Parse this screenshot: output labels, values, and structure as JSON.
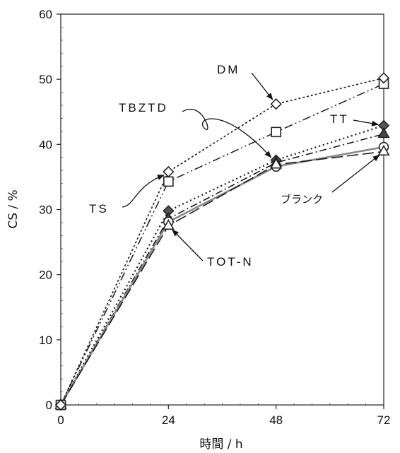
{
  "chart_data": {
    "type": "line",
    "title": "",
    "xlabel": "時間 / h",
    "ylabel": "CS / %",
    "x": [
      0,
      24,
      48,
      72
    ],
    "xlim": [
      0,
      72
    ],
    "ylim": [
      0,
      60
    ],
    "xticks": [
      "0",
      "24",
      "48",
      "72"
    ],
    "yticks": [
      "0",
      "10",
      "20",
      "30",
      "40",
      "50",
      "60"
    ],
    "grid": false,
    "series": [
      {
        "name": "DM",
        "values": [
          0,
          35.8,
          46.2,
          50.2
        ],
        "marker": "diamond-open",
        "dash": "dotted-dense",
        "color": "#1a1a1a"
      },
      {
        "name": "TBZTD",
        "values": [
          0,
          34.3,
          41.9,
          49.3
        ],
        "marker": "square-open",
        "dash": "dash-dot-dot",
        "color": "#1a1a1a"
      },
      {
        "name": "TT",
        "values": [
          0,
          29.8,
          37.6,
          42.9
        ],
        "marker": "diamond-filled",
        "dash": "dotted",
        "color": "#1a1a1a"
      },
      {
        "name": "TS",
        "values": [
          0,
          28.6,
          37.2,
          41.6
        ],
        "marker": "triangle-filled",
        "dash": "dash-dot",
        "color": "#1a1a1a"
      },
      {
        "name": "ブランク",
        "values": [
          0,
          28.1,
          36.6,
          39.6
        ],
        "marker": "circle-open",
        "dash": "solid-gray",
        "color": "#888888"
      },
      {
        "name": "TOT-N",
        "values": [
          0,
          27.5,
          36.9,
          38.9
        ],
        "marker": "triangle-open",
        "dash": "long-dash",
        "color": "#1a1a1a"
      }
    ],
    "annotations": [
      {
        "text": "DM",
        "target_series": "DM",
        "target_x": 48
      },
      {
        "text": "TBZTD",
        "target_series": "TT",
        "target_x": 48
      },
      {
        "text": "TT",
        "target_series": "TT",
        "target_x": 72
      },
      {
        "text": "TS",
        "target_series": "DM",
        "target_x": 24
      },
      {
        "text": "ブランク",
        "target_series": "TOT-N",
        "target_x": 72
      },
      {
        "text": "TOT-N",
        "target_series": "TOT-N",
        "target_x": 24
      }
    ]
  }
}
